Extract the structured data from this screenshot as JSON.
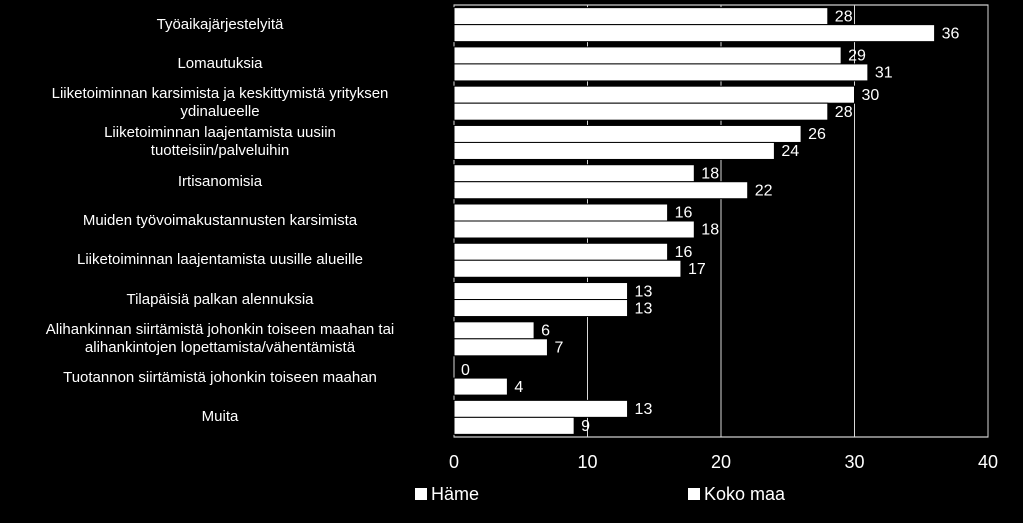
{
  "chart_data": {
    "type": "hbar",
    "categories": [
      "Työaikajärjestelyitä",
      "Lomautuksia",
      "Liiketoiminnan karsimista ja keskittymistä yrityksen\nydinalueelle",
      "Liiketoiminnan laajentamista uusiin\ntuotteisiin/palveluihin",
      "Irtisanomisia",
      "Muiden työvoimakustannusten karsimista",
      "Liiketoiminnan laajentamista uusille alueille",
      "Tilapäisiä palkan alennuksia",
      "Alihankinnan siirtämistä johonkin toiseen maahan tai\nalihankintojen lopettamista/vähentämistä",
      "Tuotannon siirtämistä johonkin toiseen maahan",
      "Muita"
    ],
    "series": [
      {
        "name": "Häme",
        "color": "#ffffff",
        "values": [
          28,
          29,
          30,
          26,
          18,
          16,
          16,
          13,
          6,
          0,
          13
        ]
      },
      {
        "name": "Koko maa",
        "color": "#ffffff",
        "values": [
          36,
          31,
          28,
          24,
          22,
          18,
          17,
          13,
          7,
          4,
          9
        ]
      }
    ],
    "xlim": [
      0,
      40
    ],
    "xticks": [
      0,
      10,
      20,
      30,
      40
    ],
    "grid": true,
    "legend": "bottom"
  }
}
